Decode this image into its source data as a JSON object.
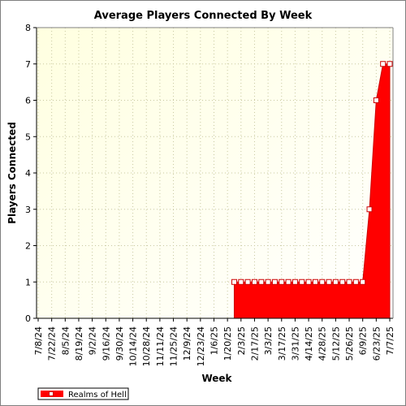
{
  "colors": {
    "plot_bg_top": "#ffffe0",
    "plot_bg_bottom": "#ffffff",
    "series": "#ff0000",
    "series_dark": "#cc0000",
    "grid": "#c8c8a0",
    "axis": "#000000",
    "marker_fill": "#ffffff"
  },
  "chart_data": {
    "type": "area",
    "title": "Average Players Connected By Week",
    "xlabel": "Week",
    "ylabel": "Players Connected",
    "ylim": [
      0,
      8
    ],
    "yticks": [
      0,
      1,
      2,
      3,
      4,
      5,
      6,
      7,
      8
    ],
    "grid": true,
    "legend_position": "bottom-left",
    "x_tick_labels": [
      "7/8/24",
      "7/22/24",
      "8/5/24",
      "8/19/24",
      "9/2/24",
      "9/16/24",
      "9/30/24",
      "10/14/24",
      "10/28/24",
      "11/11/24",
      "11/25/24",
      "12/9/24",
      "12/23/24",
      "1/6/25",
      "1/20/25",
      "2/3/25",
      "2/17/25",
      "3/3/25",
      "3/17/25",
      "3/31/25",
      "4/14/25",
      "4/28/25",
      "5/12/25",
      "5/26/25",
      "6/9/25",
      "6/23/25",
      "7/7/25"
    ],
    "x": [
      "7/8/24",
      "7/15/24",
      "7/22/24",
      "7/29/24",
      "8/5/24",
      "8/12/24",
      "8/19/24",
      "8/26/24",
      "9/2/24",
      "9/9/24",
      "9/16/24",
      "9/23/24",
      "9/30/24",
      "10/7/24",
      "10/14/24",
      "10/21/24",
      "10/28/24",
      "11/4/24",
      "11/11/24",
      "11/18/24",
      "11/25/24",
      "12/2/24",
      "12/9/24",
      "12/16/24",
      "12/23/24",
      "12/30/24",
      "1/6/25",
      "1/13/25",
      "1/20/25",
      "1/27/25",
      "2/3/25",
      "2/10/25",
      "2/17/25",
      "2/24/25",
      "3/3/25",
      "3/10/25",
      "3/17/25",
      "3/24/25",
      "3/31/25",
      "4/7/25",
      "4/14/25",
      "4/21/25",
      "4/28/25",
      "5/5/25",
      "5/12/25",
      "5/19/25",
      "5/26/25",
      "6/2/25",
      "6/9/25",
      "6/16/25",
      "6/23/25",
      "6/30/25",
      "7/7/25"
    ],
    "series": [
      {
        "name": "Realms of Hell",
        "values": [
          null,
          null,
          null,
          null,
          null,
          null,
          null,
          null,
          null,
          null,
          null,
          null,
          null,
          null,
          null,
          null,
          null,
          null,
          null,
          null,
          null,
          null,
          null,
          null,
          null,
          null,
          null,
          null,
          null,
          1,
          1,
          1,
          1,
          1,
          1,
          1,
          1,
          1,
          1,
          1,
          1,
          1,
          1,
          1,
          1,
          1,
          1,
          1,
          1,
          3,
          6,
          7,
          7
        ]
      }
    ]
  }
}
